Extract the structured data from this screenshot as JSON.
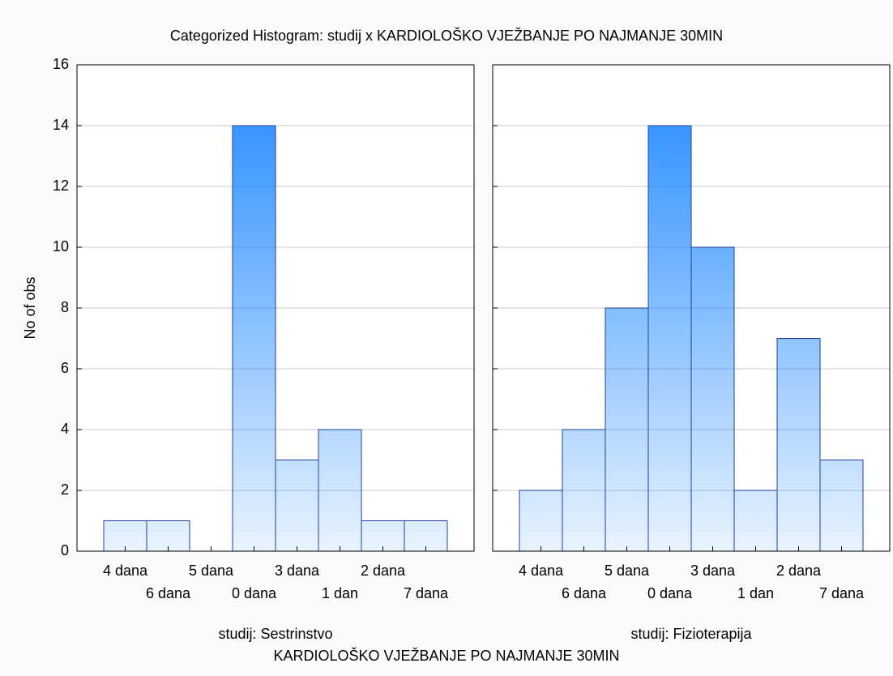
{
  "chart_data": {
    "type": "bar",
    "title": "Categorized Histogram: studij x KARDIOLOŠKO VJEŽBANJE PO NAJMANJE 30MIN",
    "xlabel": "KARDIOLOŠKO VJEŽBANJE PO NAJMANJE 30MIN",
    "ylabel": "No of obs",
    "categories": [
      "4 dana",
      "6 dana",
      "5 dana",
      "0 dana",
      "3 dana",
      "1 dan",
      "2 dana",
      "7 dana"
    ],
    "panels": [
      {
        "label": "studij: Sestrinstvo",
        "values": [
          1,
          1,
          0,
          14,
          3,
          4,
          1,
          1
        ]
      },
      {
        "label": "studij: Fizioterapija",
        "values": [
          2,
          4,
          8,
          14,
          10,
          2,
          7,
          3
        ]
      }
    ],
    "color": "#1e88ff",
    "ylim": [
      0,
      16
    ],
    "yticks": [
      0,
      2,
      4,
      6,
      8,
      10,
      12,
      14,
      16
    ],
    "grid": true
  }
}
